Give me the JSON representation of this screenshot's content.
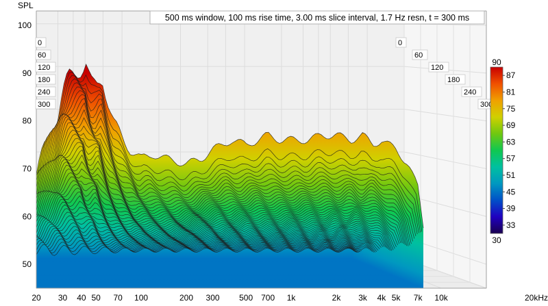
{
  "chart_data": {
    "type": "area",
    "subtype": "waterfall-3d",
    "title": "500 ms window, 100 ms rise time, 3.00 ms slice interval, 1.7 Hz resn, t = 300 ms",
    "ylabel": "SPL",
    "xlabel": "",
    "x_scale": "log",
    "xlim": [
      20,
      20000
    ],
    "ylim": [
      45,
      103
    ],
    "x_ticks": [
      20,
      30,
      40,
      50,
      70,
      100,
      200,
      300,
      500,
      700,
      1000,
      2000,
      3000,
      4000,
      5000,
      7000,
      10000,
      20000
    ],
    "x_tick_labels": [
      "20",
      "30",
      "40",
      "50",
      "70",
      "100",
      "200",
      "300",
      "500",
      "700",
      "1k",
      "2k",
      "3k",
      "4k",
      "5k",
      "7k",
      "10k",
      "20kHz"
    ],
    "y_ticks": [
      50,
      60,
      70,
      80,
      90,
      100
    ],
    "y_tick_labels": [
      "50",
      "60",
      "70",
      "80",
      "90",
      "100"
    ],
    "time_ticks_ms": [
      0,
      60,
      120,
      180,
      240,
      300
    ],
    "time_tick_labels": [
      "0",
      "60",
      "120",
      "180",
      "240",
      "300"
    ],
    "colorbar": {
      "min": 30,
      "max": 90,
      "min_label": "30",
      "max_label": "90",
      "ticks": [
        33,
        39,
        45,
        51,
        57,
        63,
        69,
        75,
        81,
        87
      ],
      "tick_labels": [
        "33",
        "39",
        "45",
        "51",
        "57",
        "63",
        "69",
        "75",
        "81",
        "87"
      ],
      "colors": [
        "#1a0050",
        "#2000c0",
        "#0050c8",
        "#0098c0",
        "#00c0a0",
        "#10c850",
        "#70c810",
        "#d0d000",
        "#f0a000",
        "#f05000",
        "#c80000"
      ]
    },
    "grid": true,
    "front_slice_t_ms": 0,
    "front_slice": {
      "freq_hz": [
        20,
        23,
        27,
        30,
        33,
        36,
        40,
        43,
        46,
        50,
        55,
        60,
        65,
        70,
        76,
        85,
        100,
        120,
        150,
        200,
        250,
        300,
        350,
        400,
        500,
        600,
        700,
        850,
        1000,
        1300,
        1600,
        2000,
        2500,
        3000,
        3500,
        4000,
        5000,
        6000,
        7000,
        7600
      ],
      "spl_db": [
        69,
        74,
        80,
        86,
        89,
        90,
        91,
        92,
        88,
        87,
        89,
        84,
        80,
        78,
        76,
        74,
        72,
        73,
        72,
        71,
        72,
        74,
        75,
        76,
        75,
        76,
        77,
        76,
        76,
        76,
        77,
        77,
        76,
        77,
        75,
        76,
        74,
        71,
        66,
        58
      ]
    },
    "back_slice_t_ms": 300,
    "back_slice_spl_db": 47
  }
}
